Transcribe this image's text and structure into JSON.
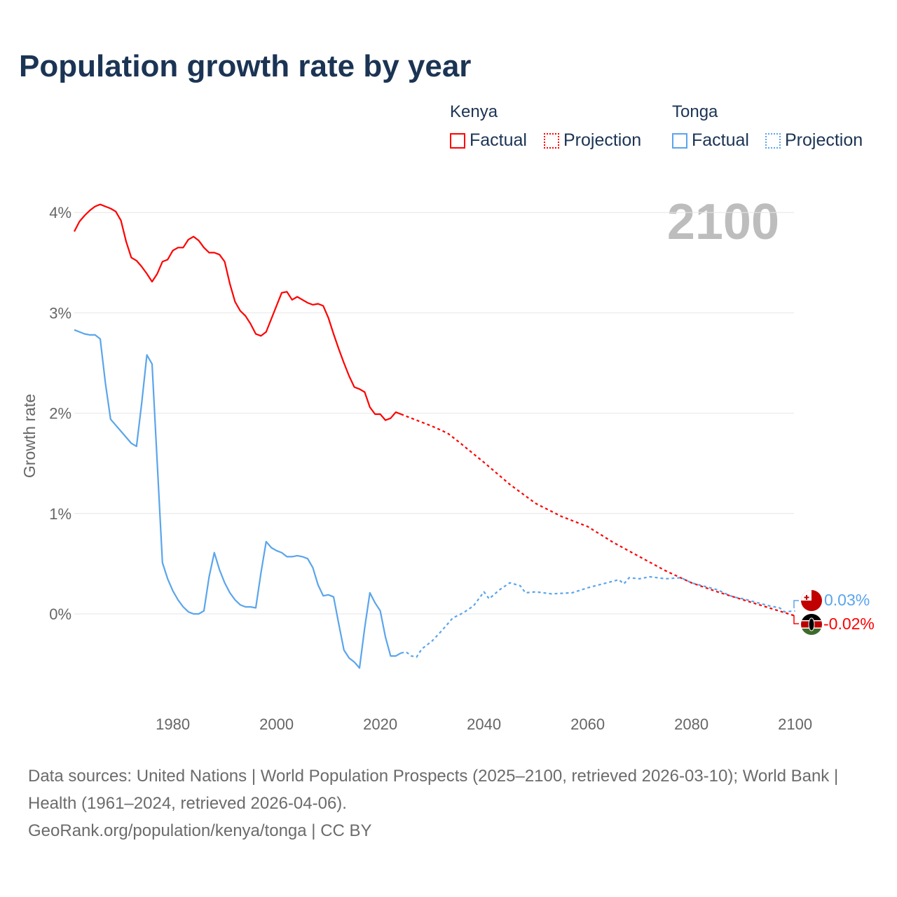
{
  "title": "Population growth rate by year",
  "current_year": "2100",
  "legend": {
    "groups": [
      {
        "name": "Kenya",
        "factual": "Factual",
        "projection": "Projection",
        "color": "#ff0000"
      },
      {
        "name": "Tonga",
        "factual": "Factual",
        "projection": "Projection",
        "color": "#5aa5ec"
      }
    ]
  },
  "end_labels": {
    "tonga": "0.03%",
    "kenya": "-0.02%"
  },
  "source": {
    "line1": "Data sources: United Nations | World Population Prospects (2025–2100, retrieved 2026-03-10); World Bank | Health (1961–2024, retrieved 2026-04-06).",
    "line2": "GeoRank.org/population/kenya/tonga | CC BY"
  },
  "chart_data": {
    "type": "line",
    "title": "Population growth rate by year",
    "xlabel": "",
    "ylabel": "Growth rate",
    "xlim": [
      1961,
      2100
    ],
    "ylim": [
      -0.9,
      4.3
    ],
    "x_ticks": [
      "1980",
      "2000",
      "2020",
      "2040",
      "2060",
      "2080",
      "2100"
    ],
    "y_ticks": [
      "0%",
      "1%",
      "2%",
      "3%",
      "4%"
    ],
    "grid": true,
    "series": [
      {
        "name": "Kenya Factual",
        "color": "#ff0000",
        "style": "solid",
        "x": [
          1961,
          1962,
          1963,
          1964,
          1965,
          1966,
          1967,
          1968,
          1969,
          1970,
          1971,
          1972,
          1973,
          1974,
          1975,
          1976,
          1977,
          1978,
          1979,
          1980,
          1981,
          1982,
          1983,
          1984,
          1985,
          1986,
          1987,
          1988,
          1989,
          1990,
          1991,
          1992,
          1993,
          1994,
          1995,
          1996,
          1997,
          1998,
          1999,
          2000,
          2001,
          2002,
          2003,
          2004,
          2005,
          2006,
          2007,
          2008,
          2009,
          2010,
          2011,
          2012,
          2013,
          2014,
          2015,
          2016,
          2017,
          2018,
          2019,
          2020,
          2021,
          2022,
          2023,
          2024
        ],
        "y": [
          3.81,
          3.91,
          3.97,
          4.02,
          4.06,
          4.08,
          4.06,
          4.04,
          4.01,
          3.92,
          3.71,
          3.55,
          3.52,
          3.46,
          3.39,
          3.31,
          3.39,
          3.51,
          3.53,
          3.62,
          3.65,
          3.65,
          3.73,
          3.76,
          3.72,
          3.65,
          3.6,
          3.6,
          3.58,
          3.51,
          3.29,
          3.11,
          3.02,
          2.97,
          2.89,
          2.79,
          2.77,
          2.81,
          2.94,
          3.07,
          3.2,
          3.21,
          3.13,
          3.16,
          3.13,
          3.1,
          3.08,
          3.09,
          3.07,
          2.95,
          2.79,
          2.64,
          2.5,
          2.37,
          2.26,
          2.24,
          2.21,
          2.06,
          1.99,
          1.99,
          1.93,
          1.95,
          2.01,
          1.99
        ]
      },
      {
        "name": "Kenya Projection",
        "color": "#ff0000",
        "style": "dotted",
        "x": [
          2024,
          2025,
          2030,
          2033,
          2035,
          2040,
          2045,
          2050,
          2055,
          2060,
          2065,
          2070,
          2075,
          2080,
          2085,
          2090,
          2095,
          2100
        ],
        "y": [
          1.99,
          1.97,
          1.87,
          1.8,
          1.72,
          1.51,
          1.29,
          1.1,
          0.97,
          0.87,
          0.71,
          0.57,
          0.43,
          0.31,
          0.22,
          0.14,
          0.06,
          -0.02
        ]
      },
      {
        "name": "Tonga Factual",
        "color": "#5aa5ec",
        "style": "solid",
        "x": [
          1961,
          1962,
          1963,
          1964,
          1965,
          1966,
          1967,
          1968,
          1969,
          1970,
          1971,
          1972,
          1973,
          1974,
          1975,
          1976,
          1977,
          1978,
          1979,
          1980,
          1981,
          1982,
          1983,
          1984,
          1985,
          1986,
          1987,
          1988,
          1989,
          1990,
          1991,
          1992,
          1993,
          1994,
          1995,
          1996,
          1997,
          1998,
          1999,
          2000,
          2001,
          2002,
          2003,
          2004,
          2005,
          2006,
          2007,
          2008,
          2009,
          2010,
          2011,
          2012,
          2013,
          2014,
          2015,
          2016,
          2017,
          2018,
          2019,
          2020,
          2021,
          2022,
          2023,
          2024
        ],
        "y": [
          2.83,
          2.81,
          2.79,
          2.78,
          2.78,
          2.74,
          2.3,
          1.94,
          1.88,
          1.82,
          1.76,
          1.7,
          1.67,
          2.1,
          2.58,
          2.49,
          1.5,
          0.51,
          0.35,
          0.23,
          0.14,
          0.07,
          0.02,
          0.0,
          0.0,
          0.03,
          0.37,
          0.61,
          0.44,
          0.31,
          0.21,
          0.14,
          0.09,
          0.07,
          0.07,
          0.06,
          0.41,
          0.72,
          0.66,
          0.63,
          0.61,
          0.57,
          0.57,
          0.58,
          0.57,
          0.55,
          0.46,
          0.29,
          0.18,
          0.19,
          0.17,
          -0.1,
          -0.36,
          -0.44,
          -0.48,
          -0.54,
          -0.14,
          0.21,
          0.11,
          0.03,
          -0.23,
          -0.42,
          -0.42,
          -0.39
        ]
      },
      {
        "name": "Tonga Projection",
        "color": "#5aa5ec",
        "style": "dotted",
        "x": [
          2024,
          2025,
          2026,
          2027,
          2028,
          2030,
          2032,
          2034,
          2036,
          2038,
          2040,
          2041,
          2043,
          2045,
          2047,
          2048,
          2050,
          2053,
          2057,
          2060,
          2063,
          2066,
          2067,
          2068,
          2070,
          2072,
          2075,
          2078,
          2080,
          2085,
          2088,
          2090,
          2095,
          2097,
          2098,
          2100
        ],
        "y": [
          -0.39,
          -0.38,
          -0.42,
          -0.43,
          -0.35,
          -0.27,
          -0.16,
          -0.04,
          0.01,
          0.08,
          0.22,
          0.15,
          0.24,
          0.31,
          0.28,
          0.21,
          0.22,
          0.2,
          0.21,
          0.26,
          0.3,
          0.34,
          0.3,
          0.36,
          0.35,
          0.37,
          0.35,
          0.36,
          0.31,
          0.24,
          0.17,
          0.15,
          0.08,
          0.06,
          0.02,
          0.03
        ]
      }
    ]
  }
}
